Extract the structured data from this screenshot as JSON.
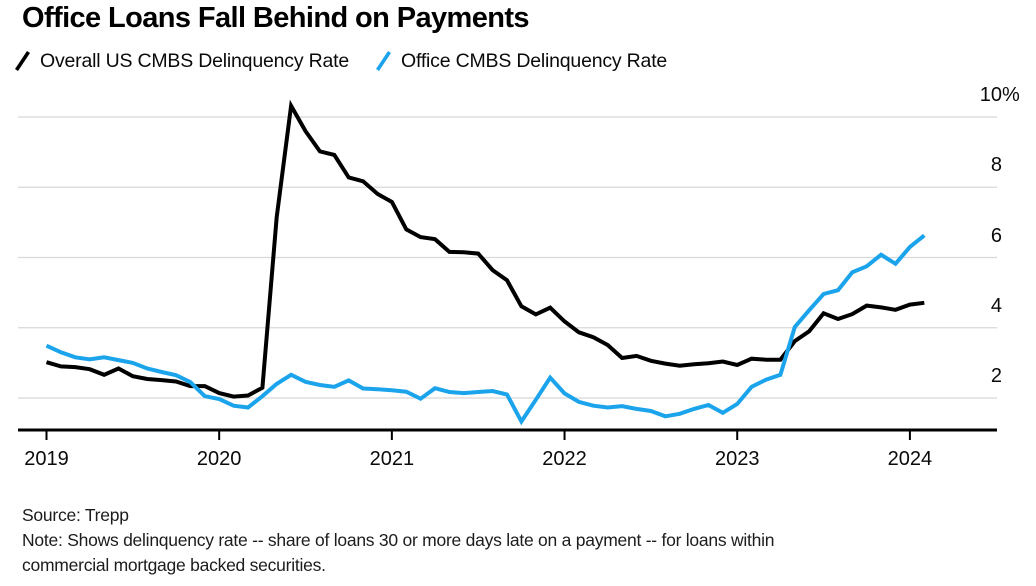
{
  "title": "Office Loans Fall Behind on Payments",
  "legend": {
    "items": [
      {
        "label": "Overall US CMBS Delinquency Rate",
        "color": "#000000"
      },
      {
        "label": "Office CMBS Delinquency Rate",
        "color": "#1ba4ec"
      }
    ]
  },
  "footer": {
    "source": "Source: Trepp",
    "note_lines": [
      "Note: Shows delinquency rate -- share of loans 30 or more days late on a payment -- for loans within",
      "commercial mortgage backed securities."
    ]
  },
  "colors": {
    "background": "#ffffff",
    "grid": "#d8d8d8",
    "axis": "#000000",
    "text": "#0a0a0a",
    "office_blue": "#1ba4ec",
    "overall_black": "#000000"
  },
  "chart_data": {
    "type": "line",
    "title": "Office Loans Fall Behind on Payments",
    "x_unit": "month",
    "x_range": [
      "2019-01",
      "2024-02"
    ],
    "x_tick_years": [
      "2019",
      "2020",
      "2021",
      "2022",
      "2023",
      "2024"
    ],
    "grid": "horizontal",
    "legend_position": "top-left",
    "y_axis": {
      "unit": "percent",
      "range_shown": [
        1.1,
        10.6
      ],
      "ticks": [
        {
          "value": 10,
          "label": "10",
          "suffix": "%"
        },
        {
          "value": 8,
          "label": "8",
          "suffix": ""
        },
        {
          "value": 6,
          "label": "6",
          "suffix": ""
        },
        {
          "value": 4,
          "label": "4",
          "suffix": ""
        },
        {
          "value": 2,
          "label": "2",
          "suffix": ""
        }
      ]
    },
    "series": [
      {
        "name": "Overall US CMBS Delinquency Rate",
        "color": "#000000",
        "values": [
          3.02,
          2.9,
          2.88,
          2.82,
          2.66,
          2.84,
          2.62,
          2.54,
          2.51,
          2.47,
          2.34,
          2.34,
          2.14,
          2.04,
          2.07,
          2.29,
          7.15,
          10.32,
          9.6,
          9.02,
          8.92,
          8.28,
          8.17,
          7.81,
          7.58,
          6.8,
          6.58,
          6.52,
          6.16,
          6.15,
          6.11,
          5.64,
          5.35,
          4.61,
          4.38,
          4.57,
          4.18,
          3.87,
          3.73,
          3.51,
          3.14,
          3.2,
          3.06,
          2.98,
          2.92,
          2.96,
          2.99,
          3.04,
          2.94,
          3.12,
          3.09,
          3.09,
          3.62,
          3.9,
          4.41,
          4.25,
          4.39,
          4.63,
          4.58,
          4.51,
          4.66,
          4.71
        ]
      },
      {
        "name": "Office CMBS Delinquency Rate",
        "color": "#1ba4ec",
        "values": [
          3.49,
          3.3,
          3.16,
          3.1,
          3.16,
          3.08,
          3.0,
          2.84,
          2.74,
          2.65,
          2.45,
          2.05,
          1.97,
          1.78,
          1.73,
          2.05,
          2.4,
          2.66,
          2.46,
          2.37,
          2.32,
          2.5,
          2.27,
          2.25,
          2.22,
          2.18,
          1.98,
          2.28,
          2.17,
          2.14,
          2.17,
          2.2,
          2.1,
          1.33,
          1.95,
          2.58,
          2.13,
          1.89,
          1.78,
          1.73,
          1.77,
          1.69,
          1.63,
          1.48,
          1.55,
          1.69,
          1.8,
          1.58,
          1.83,
          2.32,
          2.52,
          2.66,
          4.02,
          4.5,
          4.96,
          5.07,
          5.58,
          5.75,
          6.08,
          5.82,
          6.3,
          6.63
        ]
      }
    ]
  }
}
